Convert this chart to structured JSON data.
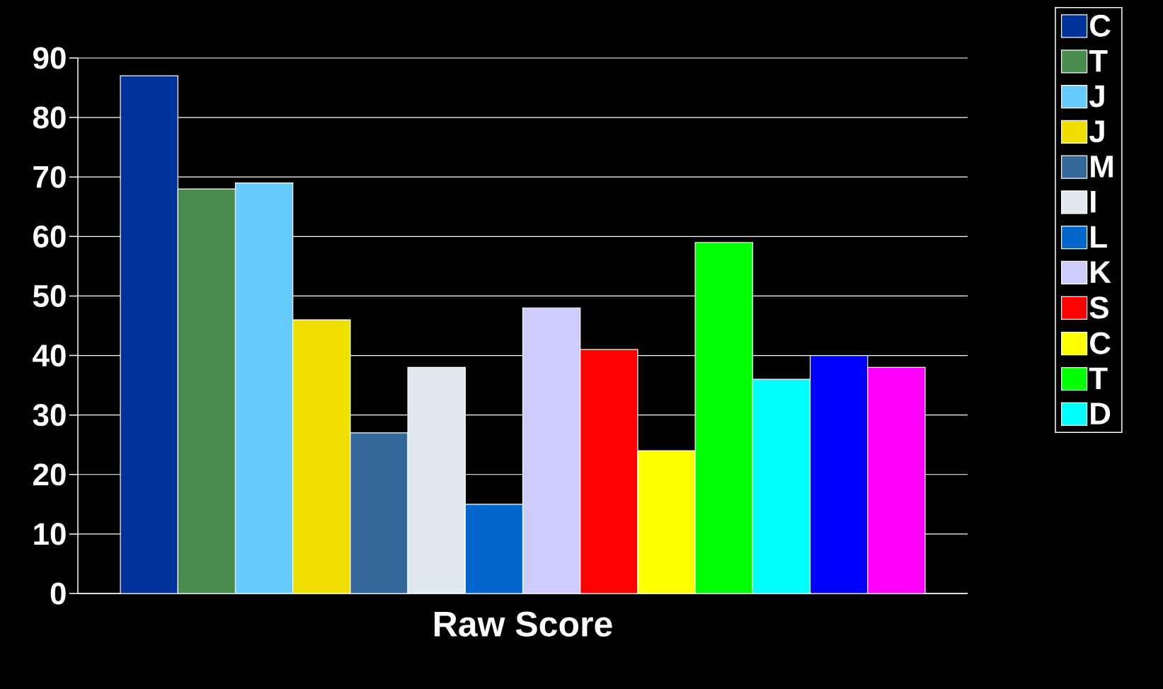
{
  "chart_data": {
    "type": "bar",
    "categories": [
      "Raw Score"
    ],
    "ylim": [
      0,
      90
    ],
    "yticks": [
      0,
      10,
      20,
      30,
      40,
      50,
      60,
      70,
      80,
      90
    ],
    "grid": "y",
    "legend": "right",
    "series": [
      {
        "name": "C",
        "color": "#003399",
        "values": [
          87
        ]
      },
      {
        "name": "T",
        "color": "#4a8c4e",
        "values": [
          68
        ]
      },
      {
        "name": "J",
        "color": "#66ccff",
        "values": [
          69
        ]
      },
      {
        "name": "J",
        "color": "#f0e000",
        "values": [
          46
        ]
      },
      {
        "name": "M",
        "color": "#336699",
        "values": [
          27
        ]
      },
      {
        "name": "I",
        "color": "#e0e8f0",
        "values": [
          38
        ]
      },
      {
        "name": "L",
        "color": "#0066cc",
        "values": [
          15
        ]
      },
      {
        "name": "K",
        "color": "#ccccff",
        "values": [
          48
        ]
      },
      {
        "name": "S",
        "color": "#ff0000",
        "values": [
          41
        ]
      },
      {
        "name": "C",
        "color": "#ffff00",
        "values": [
          24
        ]
      },
      {
        "name": "T",
        "color": "#00ff00",
        "values": [
          59
        ]
      },
      {
        "name": "D",
        "color": "#00ffff",
        "values": [
          36
        ]
      },
      {
        "color": "#0000ff",
        "values": [
          40
        ]
      },
      {
        "color": "#ff00ff",
        "values": [
          38
        ]
      }
    ]
  }
}
